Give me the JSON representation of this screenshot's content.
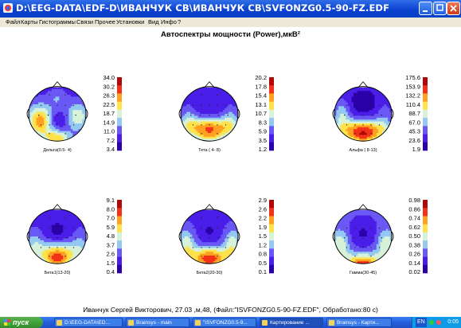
{
  "window": {
    "title": "D:\\EEG-DATA\\EDF-D\\ИВАНЧУК СВ\\ИВАНЧУК СВ\\SVFONZG0.5-90-FZ.EDF"
  },
  "menu": [
    "Файл",
    "Карты",
    "Гистограммы",
    "Связи",
    "Прочее",
    "Установки",
    "Вид",
    "Инфо",
    "?"
  ],
  "chart_data": {
    "type": "heatmap",
    "title": "Автоспектры мощности (Power),мкВ²",
    "colormap": [
      "#2b00a8",
      "#4a1ee8",
      "#6a58f5",
      "#92c8f2",
      "#d6f2d8",
      "#ffe24a",
      "#ffa020",
      "#f23218",
      "#b00808"
    ],
    "maps": [
      {
        "label": "Дельта(0.5- 4)",
        "scale": [
          "34.0",
          "30.2",
          "26.3",
          "22.5",
          "18.7",
          "14.9",
          "11.0",
          "7.2",
          "3.4"
        ],
        "min": 3.4,
        "max": 34.0,
        "pattern": "delta"
      },
      {
        "label": "Тета ( 4- 8)",
        "scale": [
          "20.2",
          "17.8",
          "15.4",
          "13.1",
          "10.7",
          "8.3",
          "5.9",
          "3.5",
          "1.2"
        ],
        "min": 1.2,
        "max": 20.2,
        "pattern": "theta"
      },
      {
        "label": "Альфа ( 8-13)",
        "scale": [
          "175.6",
          "153.9",
          "132.2",
          "110.4",
          "88.7",
          "67.0",
          "45.3",
          "23.6",
          "1.9"
        ],
        "min": 1.9,
        "max": 175.6,
        "pattern": "alpha"
      },
      {
        "label": "Бета1(13-20)",
        "scale": [
          "9.1",
          "8.0",
          "7.0",
          "5.9",
          "4.8",
          "3.7",
          "2.6",
          "1.5",
          "0.4"
        ],
        "min": 0.4,
        "max": 9.1,
        "pattern": "beta1"
      },
      {
        "label": "Бета2(20-30)",
        "scale": [
          "2.9",
          "2.6",
          "2.2",
          "1.9",
          "1.5",
          "1.2",
          "0.8",
          "0.5",
          "0.1"
        ],
        "min": 0.1,
        "max": 2.9,
        "pattern": "beta2"
      },
      {
        "label": "Гамма(30-45)",
        "scale": [
          "0.98",
          "0.86",
          "0.74",
          "0.62",
          "0.50",
          "0.38",
          "0.26",
          "0.14",
          "0.02"
        ],
        "min": 0.02,
        "max": 0.98,
        "pattern": "gamma"
      }
    ]
  },
  "footer": "Иванчук Сергей Викторович, 27.03 ,м,48, (Файл:\"ISVFONZG0.5-90-FZ.EDF\", Обработано:80  с)",
  "taskbar": {
    "start": "пуск",
    "tasks": [
      {
        "label": "D:\\EEG-DATA\\ED...",
        "active": false
      },
      {
        "label": "Brainsys - main",
        "active": false
      },
      {
        "label": "\"ISVFONZG0.5-9...",
        "active": false
      },
      {
        "label": "Картирование ...",
        "active": true
      },
      {
        "label": "Brainsys - Карти...",
        "active": false
      }
    ],
    "lang": "EN",
    "clock": "0:05"
  }
}
